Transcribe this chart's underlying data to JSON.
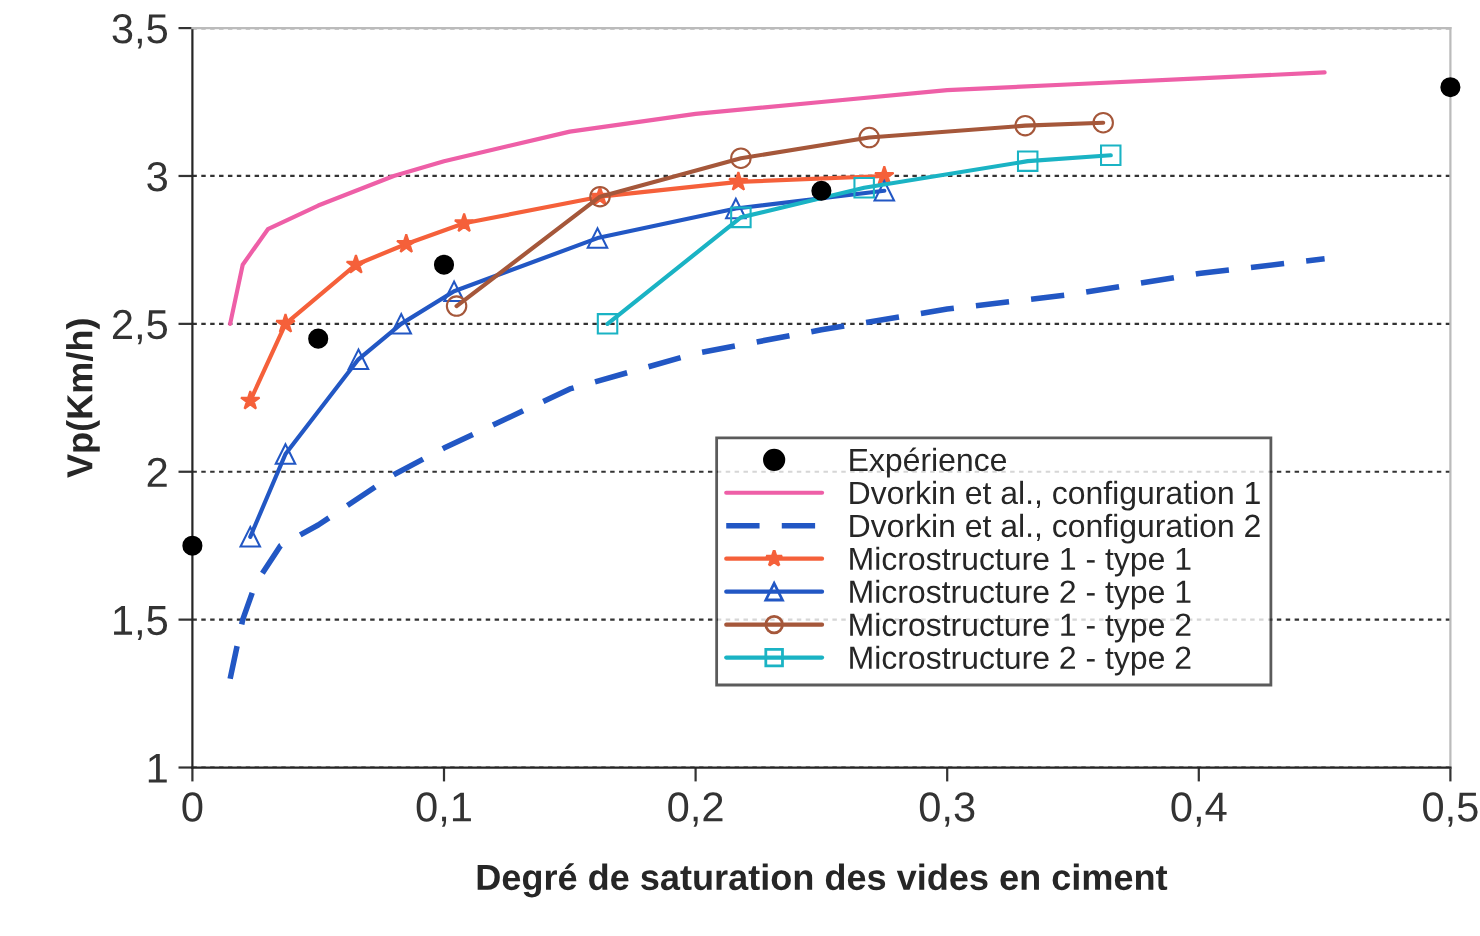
{
  "chart_data": {
    "type": "line",
    "xlabel": "Degré de saturation des vides en ciment",
    "ylabel": "Vp(Km/h)",
    "xlim": [
      0,
      0.5
    ],
    "xticks": [
      {
        "value": 0,
        "label": "0"
      },
      {
        "value": 0.1,
        "label": "0,1"
      },
      {
        "value": 0.2,
        "label": "0,2"
      },
      {
        "value": 0.3,
        "label": "0,3"
      },
      {
        "value": 0.4,
        "label": "0,4"
      },
      {
        "value": 0.5,
        "label": "0,5"
      }
    ],
    "ylim": [
      1,
      3.5
    ],
    "yticks": [
      1,
      {
        "value": 1.5,
        "label": "1,5"
      },
      2,
      {
        "value": 2.5,
        "label": "2,5"
      },
      3,
      {
        "value": 3.5,
        "label": "3,5"
      }
    ],
    "grid": "y",
    "legend": "lower right",
    "series": [
      {
        "name": "Expérience",
        "type": "scatter",
        "marker": "circle",
        "color": "#000000",
        "x": [
          0,
          0.05,
          0.1,
          0.25,
          0.5
        ],
        "values": [
          1.75,
          2.45,
          2.7,
          2.95,
          3.3
        ]
      },
      {
        "name": "Dvorkin et al., configuration 1",
        "marker": "none",
        "line_style": "solid",
        "color": "#ee5fa7",
        "x": [
          0.015,
          0.02,
          0.03,
          0.05,
          0.08,
          0.1,
          0.15,
          0.2,
          0.25,
          0.3,
          0.35,
          0.4,
          0.45
        ],
        "values": [
          2.5,
          2.7,
          2.82,
          2.9,
          3.0,
          3.05,
          3.15,
          3.21,
          3.25,
          3.29,
          3.31,
          3.33,
          3.35
        ]
      },
      {
        "name": "Dvorkin et al., configuration 2",
        "marker": "none",
        "line_style": "dashed",
        "color": "#2257c4",
        "x": [
          0.015,
          0.02,
          0.025,
          0.035,
          0.05,
          0.08,
          0.1,
          0.15,
          0.2,
          0.25,
          0.3,
          0.35,
          0.4,
          0.45
        ],
        "values": [
          1.3,
          1.5,
          1.62,
          1.75,
          1.82,
          1.99,
          2.08,
          2.28,
          2.4,
          2.48,
          2.55,
          2.6,
          2.67,
          2.72
        ]
      },
      {
        "name": "Microstructure 1 - type 1",
        "marker": "star",
        "line_style": "solid",
        "color": "#f5603a",
        "x": [
          0.023,
          0.037,
          0.065,
          0.085,
          0.108,
          0.162,
          0.217,
          0.275
        ],
        "values": [
          2.24,
          2.5,
          2.7,
          2.77,
          2.84,
          2.93,
          2.98,
          3.0
        ]
      },
      {
        "name": "Microstructure 2 - type 1",
        "marker": "triangle",
        "line_style": "solid",
        "color": "#2257c4",
        "x": [
          0.023,
          0.037,
          0.066,
          0.083,
          0.104,
          0.161,
          0.216,
          0.275
        ],
        "values": [
          1.78,
          2.06,
          2.38,
          2.5,
          2.61,
          2.79,
          2.89,
          2.95
        ]
      },
      {
        "name": "Microstructure 1 - type 2",
        "marker": "circle",
        "line_style": "solid",
        "color": "#a5573a",
        "x": [
          0.105,
          0.162,
          0.218,
          0.269,
          0.331,
          0.362
        ],
        "values": [
          2.56,
          2.93,
          3.06,
          3.13,
          3.17,
          3.18
        ]
      },
      {
        "name": "Microstructure 2 - type 2",
        "marker": "square",
        "line_style": "solid",
        "color": "#1ab3c4",
        "x": [
          0.165,
          0.218,
          0.267,
          0.332,
          0.365
        ],
        "values": [
          2.5,
          2.86,
          2.96,
          3.05,
          3.07
        ]
      }
    ]
  }
}
